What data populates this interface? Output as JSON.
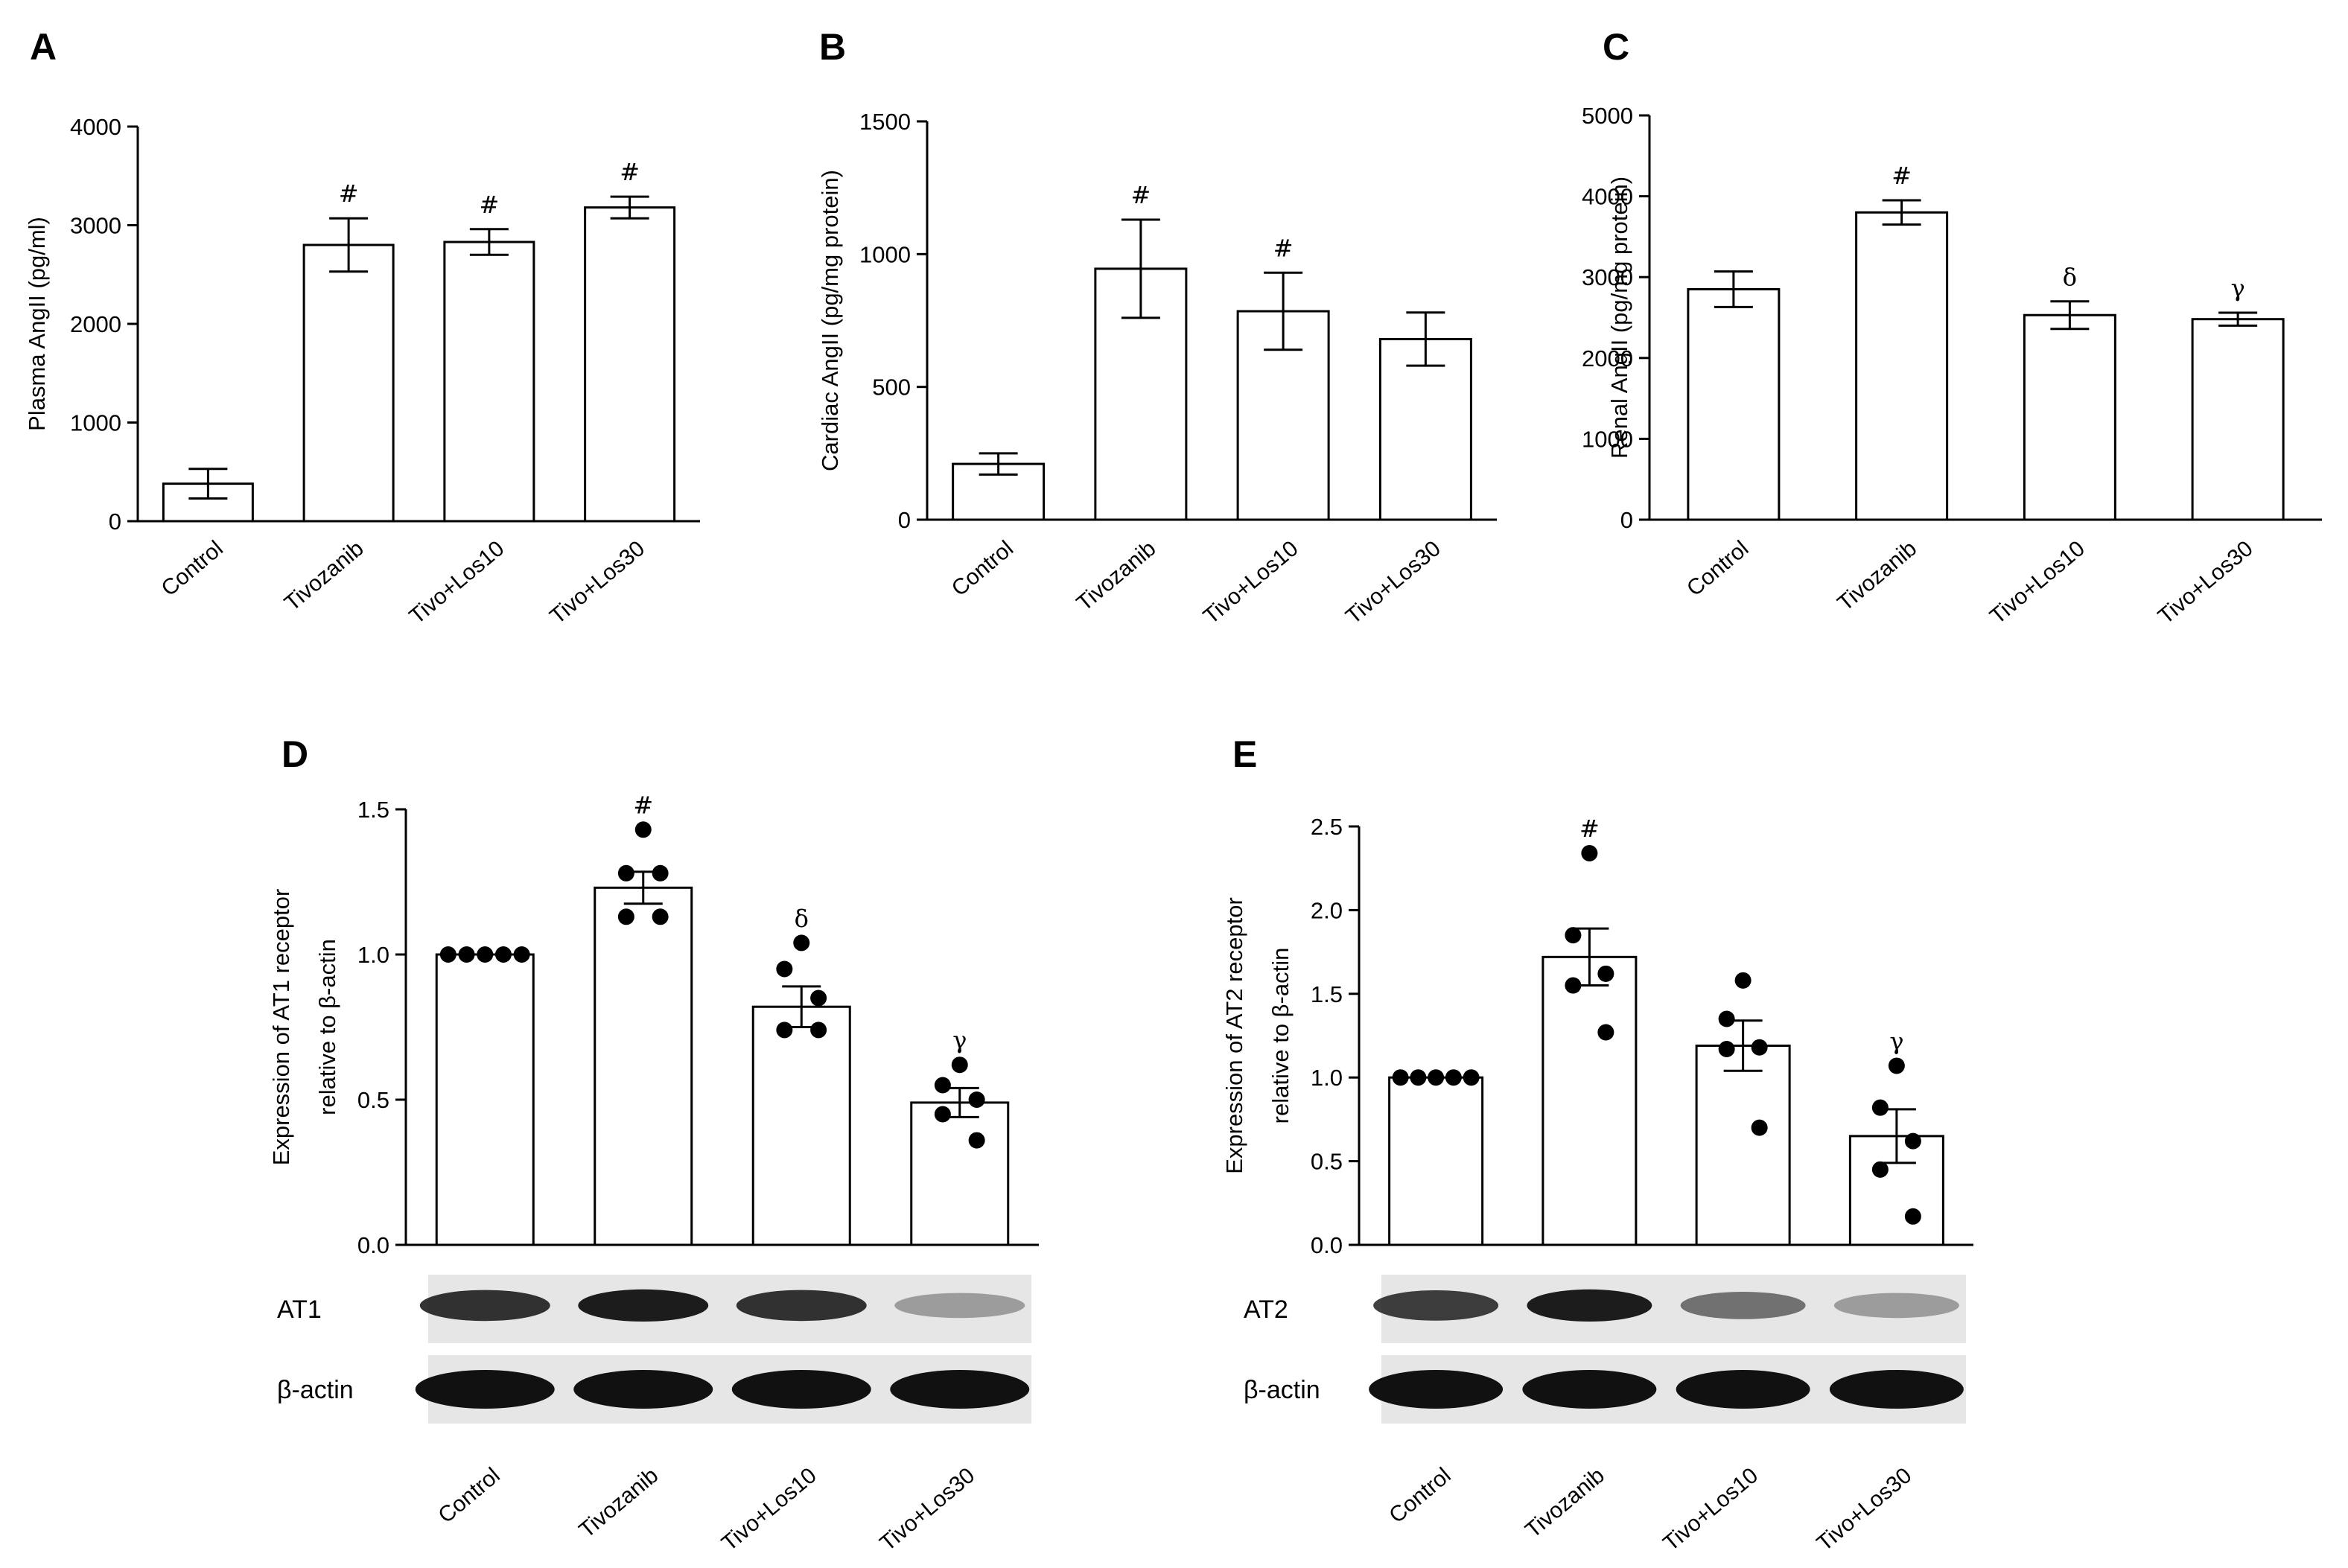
{
  "figure": {
    "charts": [
      {
        "id": "A",
        "letter": "A",
        "type": "bar",
        "ylabel": "Plasma AngII (pg/ml)",
        "ylim": [
          0,
          4000
        ],
        "yticks": [
          0,
          1000,
          2000,
          3000,
          4000
        ],
        "categories": [
          "Control",
          "Tivozanib",
          "Tivo+Los10",
          "Tivo+Los30"
        ],
        "values": [
          380,
          2800,
          2830,
          3180
        ],
        "errors": [
          150,
          270,
          130,
          110
        ],
        "annotations": [
          "",
          "#",
          "#",
          "#"
        ],
        "points": []
      },
      {
        "id": "B",
        "letter": "B",
        "type": "bar",
        "ylabel": "Cardiac AngII (pg/mg protein)",
        "ylim": [
          0,
          1500
        ],
        "yticks": [
          0,
          500,
          1000,
          1500
        ],
        "categories": [
          "Control",
          "Tivozanib",
          "Tivo+Los10",
          "Tivo+Los30"
        ],
        "values": [
          210,
          945,
          785,
          680
        ],
        "errors": [
          40,
          185,
          145,
          100
        ],
        "annotations": [
          "",
          "#",
          "#",
          ""
        ],
        "points": []
      },
      {
        "id": "C",
        "letter": "C",
        "type": "bar",
        "ylabel": "Renal AngII (pg/mg protein)",
        "ylim": [
          0,
          5000
        ],
        "yticks": [
          0,
          1000,
          2000,
          3000,
          4000,
          5000
        ],
        "categories": [
          "Control",
          "Tivozanib",
          "Tivo+Los10",
          "Tivo+Los30"
        ],
        "values": [
          2850,
          3800,
          2530,
          2480
        ],
        "errors": [
          220,
          150,
          170,
          80
        ],
        "annotations": [
          "",
          "#",
          "δ",
          "γ"
        ],
        "points": []
      },
      {
        "id": "D",
        "letter": "D",
        "type": "bar",
        "ylabel_lines": [
          "Expression of AT1 receptor",
          "relative to β-actin"
        ],
        "ylim": [
          0,
          1.5
        ],
        "yticks": [
          "0.0",
          "0.5",
          "1.0",
          "1.5"
        ],
        "categories": [
          "Control",
          "Tivozanib",
          "Tivo+Los10",
          "Tivo+Los30"
        ],
        "values": [
          1.0,
          1.23,
          0.82,
          0.49
        ],
        "errors": [
          0.0,
          0.055,
          0.07,
          0.05
        ],
        "annotations": [
          "",
          "#",
          "δ",
          "γ"
        ],
        "points": [
          [
            1.0,
            1.0,
            1.0,
            1.0,
            1.0
          ],
          [
            1.43,
            1.28,
            1.28,
            1.13,
            1.13
          ],
          [
            1.04,
            0.95,
            0.85,
            0.74,
            0.74
          ],
          [
            0.62,
            0.55,
            0.5,
            0.45,
            0.36
          ]
        ]
      },
      {
        "id": "E",
        "letter": "E",
        "type": "bar",
        "ylabel_lines": [
          "Expression of AT2 receptor",
          "relative to β-actin"
        ],
        "ylim": [
          0,
          2.5
        ],
        "yticks": [
          "0.0",
          "0.5",
          "1.0",
          "1.5",
          "2.0",
          "2.5"
        ],
        "categories": [
          "Control",
          "Tivozanib",
          "Tivo+Los10",
          "Tivo+Los30"
        ],
        "values": [
          1.0,
          1.72,
          1.19,
          0.65
        ],
        "errors": [
          0.0,
          0.17,
          0.15,
          0.16
        ],
        "annotations": [
          "",
          "#",
          "",
          "γ"
        ],
        "points": [
          [
            1.0,
            1.0,
            1.0,
            1.0,
            1.0
          ],
          [
            2.34,
            1.85,
            1.62,
            1.55,
            1.27
          ],
          [
            1.58,
            1.35,
            1.18,
            1.17,
            0.7
          ],
          [
            1.07,
            0.82,
            0.62,
            0.45,
            0.17
          ]
        ]
      }
    ],
    "blots": {
      "D": {
        "top_label": "AT1",
        "bottom_label": "β-actin",
        "top_intensity": [
          0.85,
          0.95,
          0.85,
          0.35
        ],
        "bottom_intensity": [
          1,
          1,
          1,
          1
        ]
      },
      "E": {
        "top_label": "AT2",
        "bottom_label": "β-actin",
        "top_intensity": [
          0.8,
          0.95,
          0.55,
          0.35
        ],
        "bottom_intensity": [
          1,
          1,
          1,
          1
        ]
      }
    },
    "colors": {
      "axis": "#000000",
      "bar_fill": "#ffffff",
      "dot": "#000000",
      "blot_bg": "#e6e6e6",
      "band": "#111111"
    }
  }
}
